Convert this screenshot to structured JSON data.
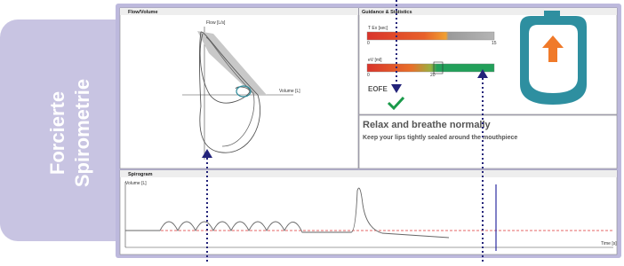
{
  "sidebar": {
    "title_lines": [
      "Forcierte",
      "Spirometrie"
    ]
  },
  "flow_volume": {
    "title": "Flow/Volume",
    "y_axis_label": "Flow [L/s]",
    "x_axis_label": "Volume [L]"
  },
  "guidance": {
    "title": "Guidance & Statistics",
    "t_ex": {
      "label": "T Ex [sec]",
      "scale_start": "0",
      "scale_end": "15"
    },
    "ev": {
      "label": "eV [ml]",
      "scale_start": "0",
      "scale_mark": "20"
    },
    "eofe": "EOFE"
  },
  "message": {
    "headline": "Relax and breathe normally",
    "instruction": "Keep your lips tightly sealed around the mouthpiece"
  },
  "spirogram": {
    "title": "Spirogram",
    "y_axis_label": "Volume [L]",
    "x_axis_label": "Time [s]"
  }
}
